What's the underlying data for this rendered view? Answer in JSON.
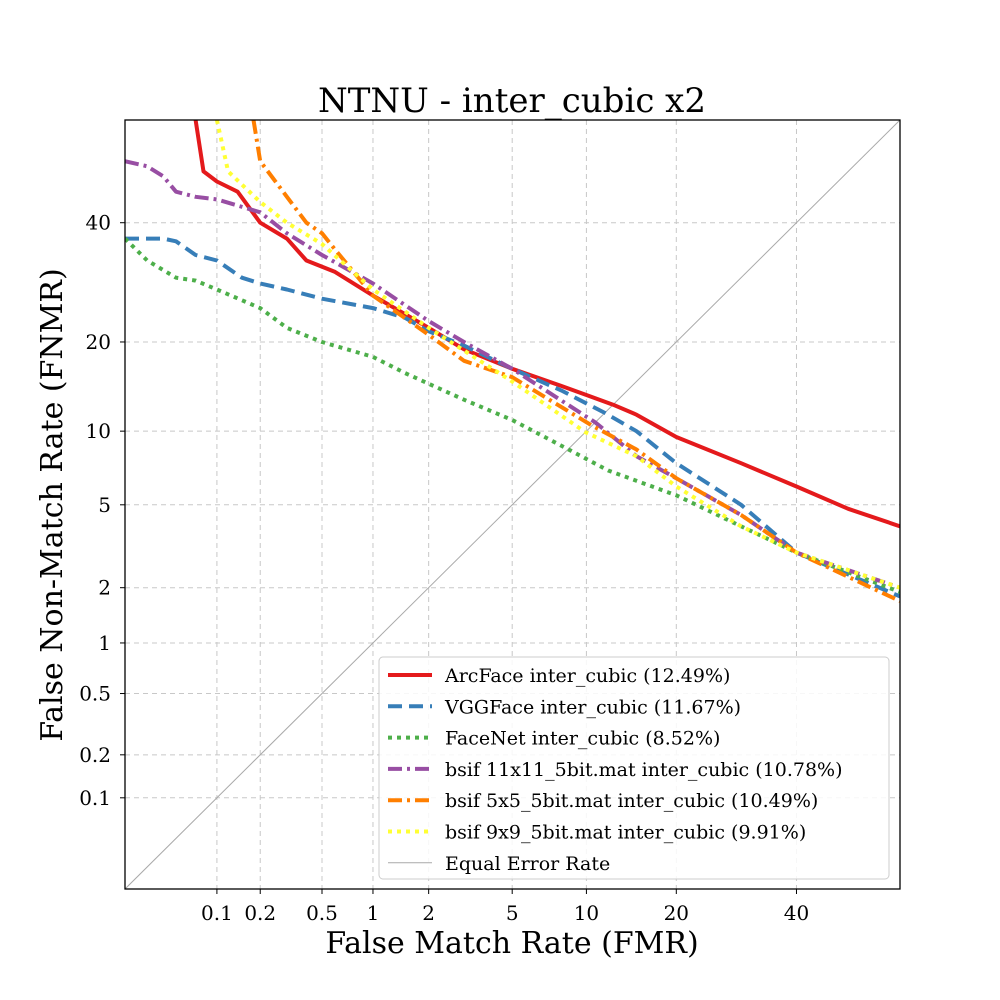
{
  "chart_data": {
    "type": "line",
    "title": "NTNU - inter_cubic x2",
    "xlabel": "False Match Rate (FMR)",
    "ylabel": "False Non-Match Rate (FNMR)",
    "x_scale": "probit",
    "y_scale": "probit",
    "xlim": [
      0.02,
      60
    ],
    "ylim": [
      0.02,
      60
    ],
    "x_ticks": [
      0.1,
      0.2,
      0.5,
      1,
      2,
      5,
      10,
      20,
      40
    ],
    "x_tick_labels": [
      "0.1",
      "0.2",
      "0.5",
      "1",
      "2",
      "5",
      "10",
      "20",
      "40"
    ],
    "y_ticks": [
      0.1,
      0.2,
      0.5,
      1,
      2,
      5,
      10,
      20,
      40
    ],
    "y_tick_labels": [
      "0.1",
      "0.2",
      "0.5",
      "1",
      "2",
      "5",
      "10",
      "20",
      "40"
    ],
    "grid": true,
    "legend_position": "lower-right",
    "series": [
      {
        "name": "ArcFace inter_cubic (12.49%)",
        "color": "#e41a1c",
        "dash": "solid",
        "points": [
          [
            0.07,
            60
          ],
          [
            0.08,
            50
          ],
          [
            0.1,
            48
          ],
          [
            0.14,
            46
          ],
          [
            0.2,
            40
          ],
          [
            0.3,
            37
          ],
          [
            0.4,
            33
          ],
          [
            0.6,
            31
          ],
          [
            1,
            27
          ],
          [
            2,
            22
          ],
          [
            3,
            19
          ],
          [
            5,
            16.5
          ],
          [
            8,
            14.5
          ],
          [
            10,
            13.5
          ],
          [
            12.49,
            12.49
          ],
          [
            15,
            11.5
          ],
          [
            20,
            9.5
          ],
          [
            30,
            7.5
          ],
          [
            40,
            6
          ],
          [
            50,
            4.8
          ],
          [
            60,
            4
          ]
        ]
      },
      {
        "name": "VGGFace inter_cubic (11.67%)",
        "color": "#377eb8",
        "dash": "dashed",
        "points": [
          [
            0.02,
            37
          ],
          [
            0.04,
            37
          ],
          [
            0.05,
            36.5
          ],
          [
            0.07,
            34
          ],
          [
            0.1,
            33
          ],
          [
            0.15,
            30
          ],
          [
            0.2,
            29
          ],
          [
            0.3,
            28
          ],
          [
            0.5,
            26.5
          ],
          [
            1,
            25
          ],
          [
            1.5,
            23.5
          ],
          [
            2,
            21.5
          ],
          [
            3,
            19.5
          ],
          [
            5,
            16.5
          ],
          [
            8,
            14
          ],
          [
            11.67,
            11.67
          ],
          [
            15,
            10
          ],
          [
            20,
            7.5
          ],
          [
            30,
            5
          ],
          [
            40,
            3
          ],
          [
            60,
            1.8
          ]
        ]
      },
      {
        "name": "FaceNet inter_cubic (8.52%)",
        "color": "#4daf4a",
        "dash": "dotted",
        "points": [
          [
            0.02,
            37
          ],
          [
            0.03,
            33
          ],
          [
            0.05,
            30
          ],
          [
            0.07,
            29.5
          ],
          [
            0.1,
            28
          ],
          [
            0.2,
            25
          ],
          [
            0.3,
            22
          ],
          [
            0.5,
            20
          ],
          [
            1,
            18
          ],
          [
            1.5,
            16
          ],
          [
            3,
            13
          ],
          [
            5,
            11
          ],
          [
            8.52,
            8.52
          ],
          [
            12,
            7
          ],
          [
            20,
            5.5
          ],
          [
            30,
            4
          ],
          [
            40,
            3
          ],
          [
            60,
            1.9
          ]
        ]
      },
      {
        "name": "bsif 11x11_5bit.mat inter_cubic (10.78%)",
        "color": "#984ea3",
        "dash": "dashdot",
        "points": [
          [
            0.02,
            52
          ],
          [
            0.03,
            51
          ],
          [
            0.04,
            49
          ],
          [
            0.05,
            46
          ],
          [
            0.07,
            45
          ],
          [
            0.1,
            44.5
          ],
          [
            0.2,
            42
          ],
          [
            0.3,
            38
          ],
          [
            0.5,
            34
          ],
          [
            1,
            29
          ],
          [
            2,
            23
          ],
          [
            3,
            20
          ],
          [
            5,
            16.5
          ],
          [
            10.78,
            10.78
          ],
          [
            15,
            8
          ],
          [
            20,
            6.5
          ],
          [
            30,
            4.5
          ],
          [
            40,
            3
          ],
          [
            60,
            2
          ]
        ]
      },
      {
        "name": "bsif 5x5_5bit.mat inter_cubic (10.49%)",
        "color": "#ff7f00",
        "dash": "dashdot",
        "points": [
          [
            0.18,
            60
          ],
          [
            0.2,
            52
          ],
          [
            0.3,
            45
          ],
          [
            0.4,
            40
          ],
          [
            0.5,
            38
          ],
          [
            0.6,
            35
          ],
          [
            1,
            27
          ],
          [
            2,
            21
          ],
          [
            3,
            17.5
          ],
          [
            5,
            15.5
          ],
          [
            10.49,
            10.49
          ],
          [
            15,
            8.5
          ],
          [
            20,
            6.5
          ],
          [
            30,
            4.5
          ],
          [
            40,
            3
          ],
          [
            60,
            1.7
          ]
        ]
      },
      {
        "name": "bsif 9x9_5bit.mat inter_cubic (9.91%)",
        "color": "#ffff33",
        "dash": "dotted",
        "points": [
          [
            0.1,
            60
          ],
          [
            0.12,
            50
          ],
          [
            0.2,
            44
          ],
          [
            0.3,
            40
          ],
          [
            0.5,
            36
          ],
          [
            1,
            28
          ],
          [
            2,
            22
          ],
          [
            5,
            15
          ],
          [
            9.91,
            9.91
          ],
          [
            15,
            8
          ],
          [
            20,
            6
          ],
          [
            30,
            4
          ],
          [
            40,
            3
          ],
          [
            60,
            2
          ]
        ]
      },
      {
        "name": "Equal Error Rate",
        "color": "#a9a9a9",
        "dash": "solid",
        "thin": true,
        "points": [
          [
            0.02,
            0.02
          ],
          [
            60,
            60
          ]
        ]
      }
    ]
  }
}
